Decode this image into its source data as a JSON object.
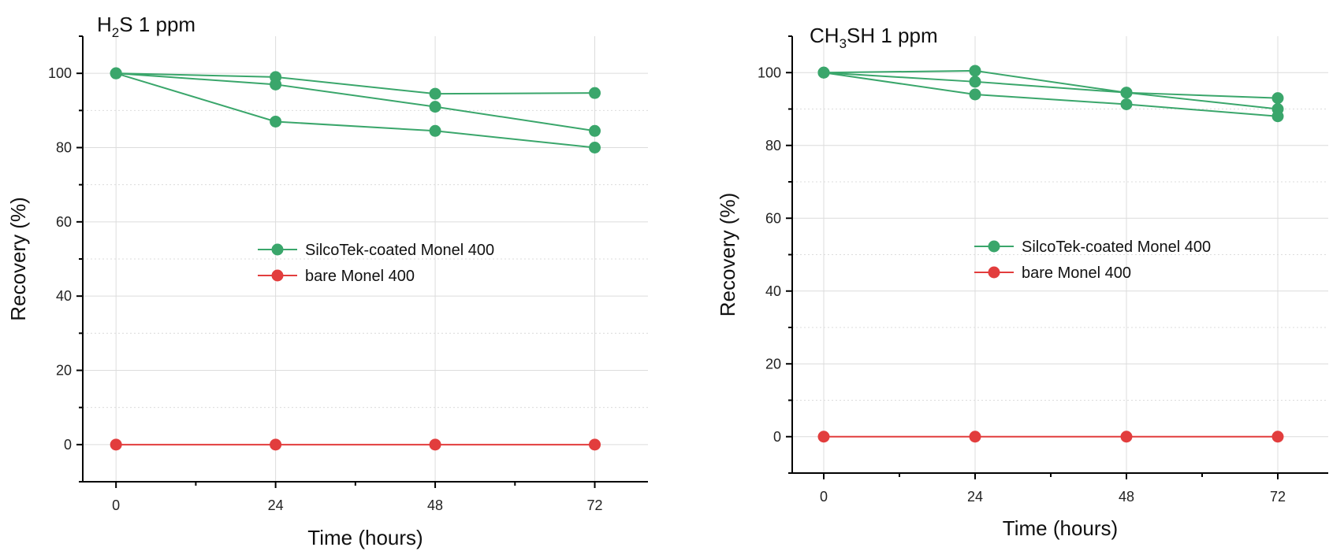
{
  "colors": {
    "green": "#3aa66b",
    "red": "#e23d3d"
  },
  "chart_data": [
    {
      "type": "line",
      "title_main": "H",
      "title_sub": "2",
      "title_rest": "S 1 ppm",
      "xlabel": "Time (hours)",
      "ylabel": "Recovery (%)",
      "x": [
        0,
        24,
        48,
        72
      ],
      "xlim": [
        -5,
        80
      ],
      "ylim": [
        -10,
        110
      ],
      "xticks": [
        "0",
        "24",
        "48",
        "72"
      ],
      "yticks": [
        "0",
        "20",
        "40",
        "60",
        "80",
        "100"
      ],
      "legend": [
        "SilcoTek-coated Monel 400",
        "bare Monel 400"
      ],
      "series": [
        {
          "name": "SilcoTek-coated Monel 400",
          "color": "green",
          "values": [
            100,
            99,
            94.5,
            94.7
          ]
        },
        {
          "name": "SilcoTek-coated Monel 400",
          "color": "green",
          "values": [
            100,
            97,
            91,
            84.5
          ]
        },
        {
          "name": "SilcoTek-coated Monel 400",
          "color": "green",
          "values": [
            100,
            87,
            84.5,
            80
          ]
        },
        {
          "name": "bare Monel 400",
          "color": "red",
          "values": [
            0,
            0,
            0,
            0
          ]
        }
      ]
    },
    {
      "type": "line",
      "title_main": "CH",
      "title_sub": "3",
      "title_rest": "SH 1 ppm",
      "xlabel": "Time (hours)",
      "ylabel": "Recovery (%)",
      "x": [
        0,
        24,
        48,
        72
      ],
      "xlim": [
        -5,
        80
      ],
      "ylim": [
        -10,
        110
      ],
      "xticks": [
        "0",
        "24",
        "48",
        "72"
      ],
      "yticks": [
        "0",
        "20",
        "40",
        "60",
        "80",
        "100"
      ],
      "legend": [
        "SilcoTek-coated Monel 400",
        "bare Monel 400"
      ],
      "series": [
        {
          "name": "SilcoTek-coated Monel 400",
          "color": "green",
          "values": [
            100,
            100.5,
            94.5,
            93
          ]
        },
        {
          "name": "SilcoTek-coated Monel 400",
          "color": "green",
          "values": [
            100,
            97.5,
            94.5,
            90
          ]
        },
        {
          "name": "SilcoTek-coated Monel 400",
          "color": "green",
          "values": [
            100,
            94,
            91.3,
            88
          ]
        },
        {
          "name": "bare Monel 400",
          "color": "red",
          "values": [
            0,
            0,
            0,
            0
          ]
        }
      ]
    }
  ]
}
